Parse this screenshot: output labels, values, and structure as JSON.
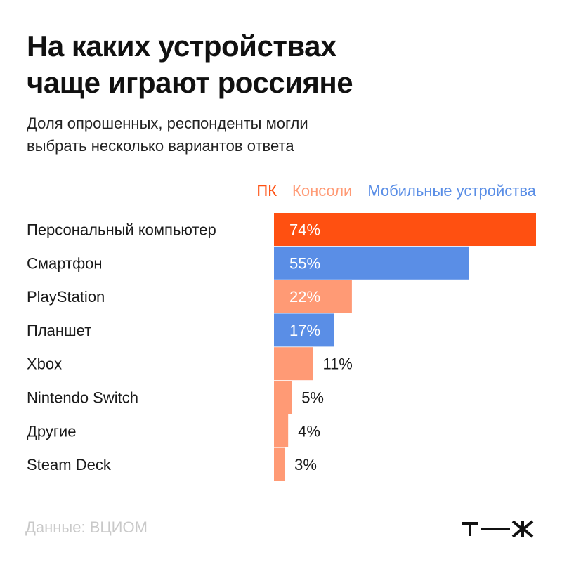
{
  "title_line1": "На каких устройствах",
  "title_line2": "чаще играют россияне",
  "subtitle_line1": "Доля опрошенных, респонденты могли",
  "subtitle_line2": "выбрать несколько вариантов ответа",
  "source": "Данные: ВЦИОМ",
  "logo_text": "т—ж",
  "colors": {
    "pc": "#ff5011",
    "consoles": "#ff9a75",
    "mobile": "#5a8ee6"
  },
  "chart_data": {
    "type": "bar",
    "orientation": "horizontal",
    "unit": "%",
    "legend": [
      {
        "key": "pc",
        "label": "ПК"
      },
      {
        "key": "consoles",
        "label": "Консоли"
      },
      {
        "key": "mobile",
        "label": "Мобильные устройства"
      }
    ],
    "legend_position": "top-right",
    "categories": [
      "Персональный компьютер",
      "Смартфон",
      "PlayStation",
      "Планшет",
      "Xbox",
      "Nintendo Switch",
      "Другие",
      "Steam Deck"
    ],
    "values": [
      74,
      55,
      22,
      17,
      11,
      5,
      4,
      3
    ],
    "value_labels": [
      "74%",
      "55%",
      "22%",
      "17%",
      "11%",
      "5%",
      "4%",
      "3%"
    ],
    "groups": [
      "pc",
      "mobile",
      "consoles",
      "mobile",
      "consoles",
      "consoles",
      "consoles",
      "consoles"
    ],
    "xlim": [
      0,
      74
    ],
    "grid": false
  }
}
